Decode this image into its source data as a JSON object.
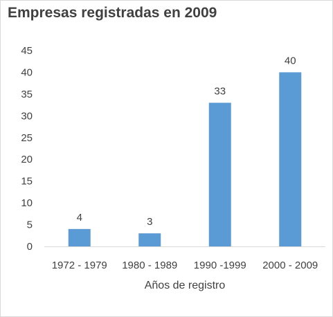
{
  "chart_data": {
    "type": "bar",
    "title": "Empresas registradas en 2009",
    "xlabel": "Años de registro",
    "ylabel": "",
    "categories": [
      "1972 - 1979",
      "1980 - 1989",
      "1990 -1999",
      "2000 - 2009"
    ],
    "values": [
      4,
      3,
      33,
      40
    ],
    "value_labels": [
      "4",
      "3",
      "33",
      "40"
    ],
    "ylim": [
      0,
      45
    ],
    "yticks": [
      0,
      5,
      10,
      15,
      20,
      25,
      30,
      35,
      40,
      45
    ],
    "ytick_labels": [
      "0",
      "5",
      "10",
      "15",
      "20",
      "25",
      "30",
      "35",
      "40",
      "45"
    ],
    "grid": false,
    "legend": "none",
    "bar_color": "#5b9bd5",
    "axis_color": "#d9d9d9",
    "text_color": "#404040"
  }
}
